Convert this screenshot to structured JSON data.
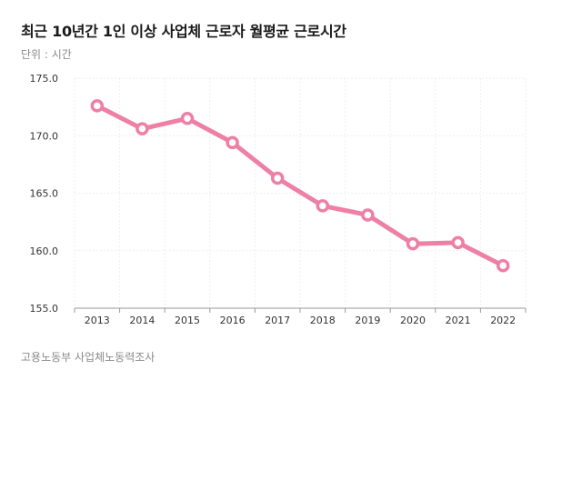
{
  "header": {
    "title": "최근 10년간 1인 이상 사업체 근로자 월평균 근로시간",
    "unit": "단위 : 시간"
  },
  "footer": {
    "source": "고용노동부 사업체노동력조사"
  },
  "colors": {
    "line": "#ee7fa5",
    "grid": "#eeeeee",
    "axis": "#999999"
  },
  "chart_data": {
    "type": "line",
    "title": "최근 10년간 1인 이상 사업체 근로자 월평균 근로시간",
    "subtitle": "단위 : 시간",
    "xlabel": "",
    "ylabel": "",
    "x": [
      "2013",
      "2014",
      "2015",
      "2016",
      "2017",
      "2018",
      "2019",
      "2020",
      "2021",
      "2022"
    ],
    "series": [
      {
        "values": [
          172.6,
          170.6,
          171.5,
          169.4,
          166.3,
          163.9,
          163.1,
          160.6,
          160.7,
          158.7
        ]
      }
    ],
    "ylim": [
      155.0,
      175.0
    ],
    "yticks": [
      "155.0",
      "160.0",
      "165.0",
      "170.0",
      "175.0"
    ],
    "grid": true,
    "legend": "none"
  }
}
